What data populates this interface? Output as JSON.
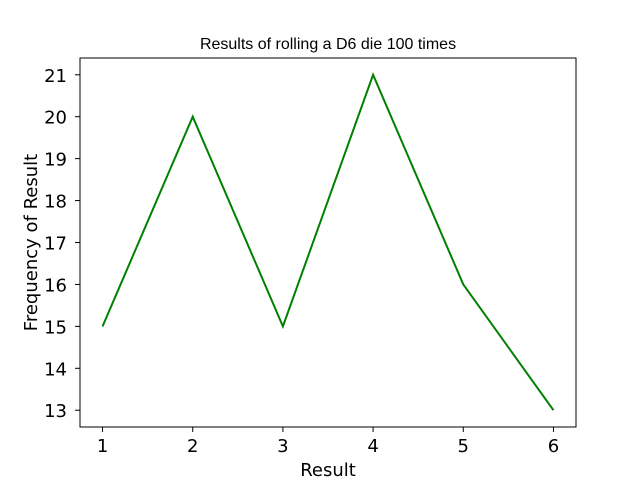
{
  "chart_data": {
    "type": "line",
    "title": "Results of rolling a D6 die 100 times",
    "xlabel": "Result",
    "ylabel": "Frequency of Result",
    "x": [
      1,
      2,
      3,
      4,
      5,
      6
    ],
    "x_ticks": [
      1,
      2,
      3,
      4,
      5,
      6
    ],
    "y_ticks": [
      13,
      14,
      15,
      16,
      17,
      18,
      19,
      20,
      21
    ],
    "xlim": [
      0.75,
      6.25
    ],
    "ylim": [
      12.6,
      21.4
    ],
    "series": [
      {
        "values": [
          15,
          20,
          15,
          21,
          16,
          13
        ],
        "color": "#008000"
      }
    ],
    "grid": false,
    "legend": "none"
  }
}
